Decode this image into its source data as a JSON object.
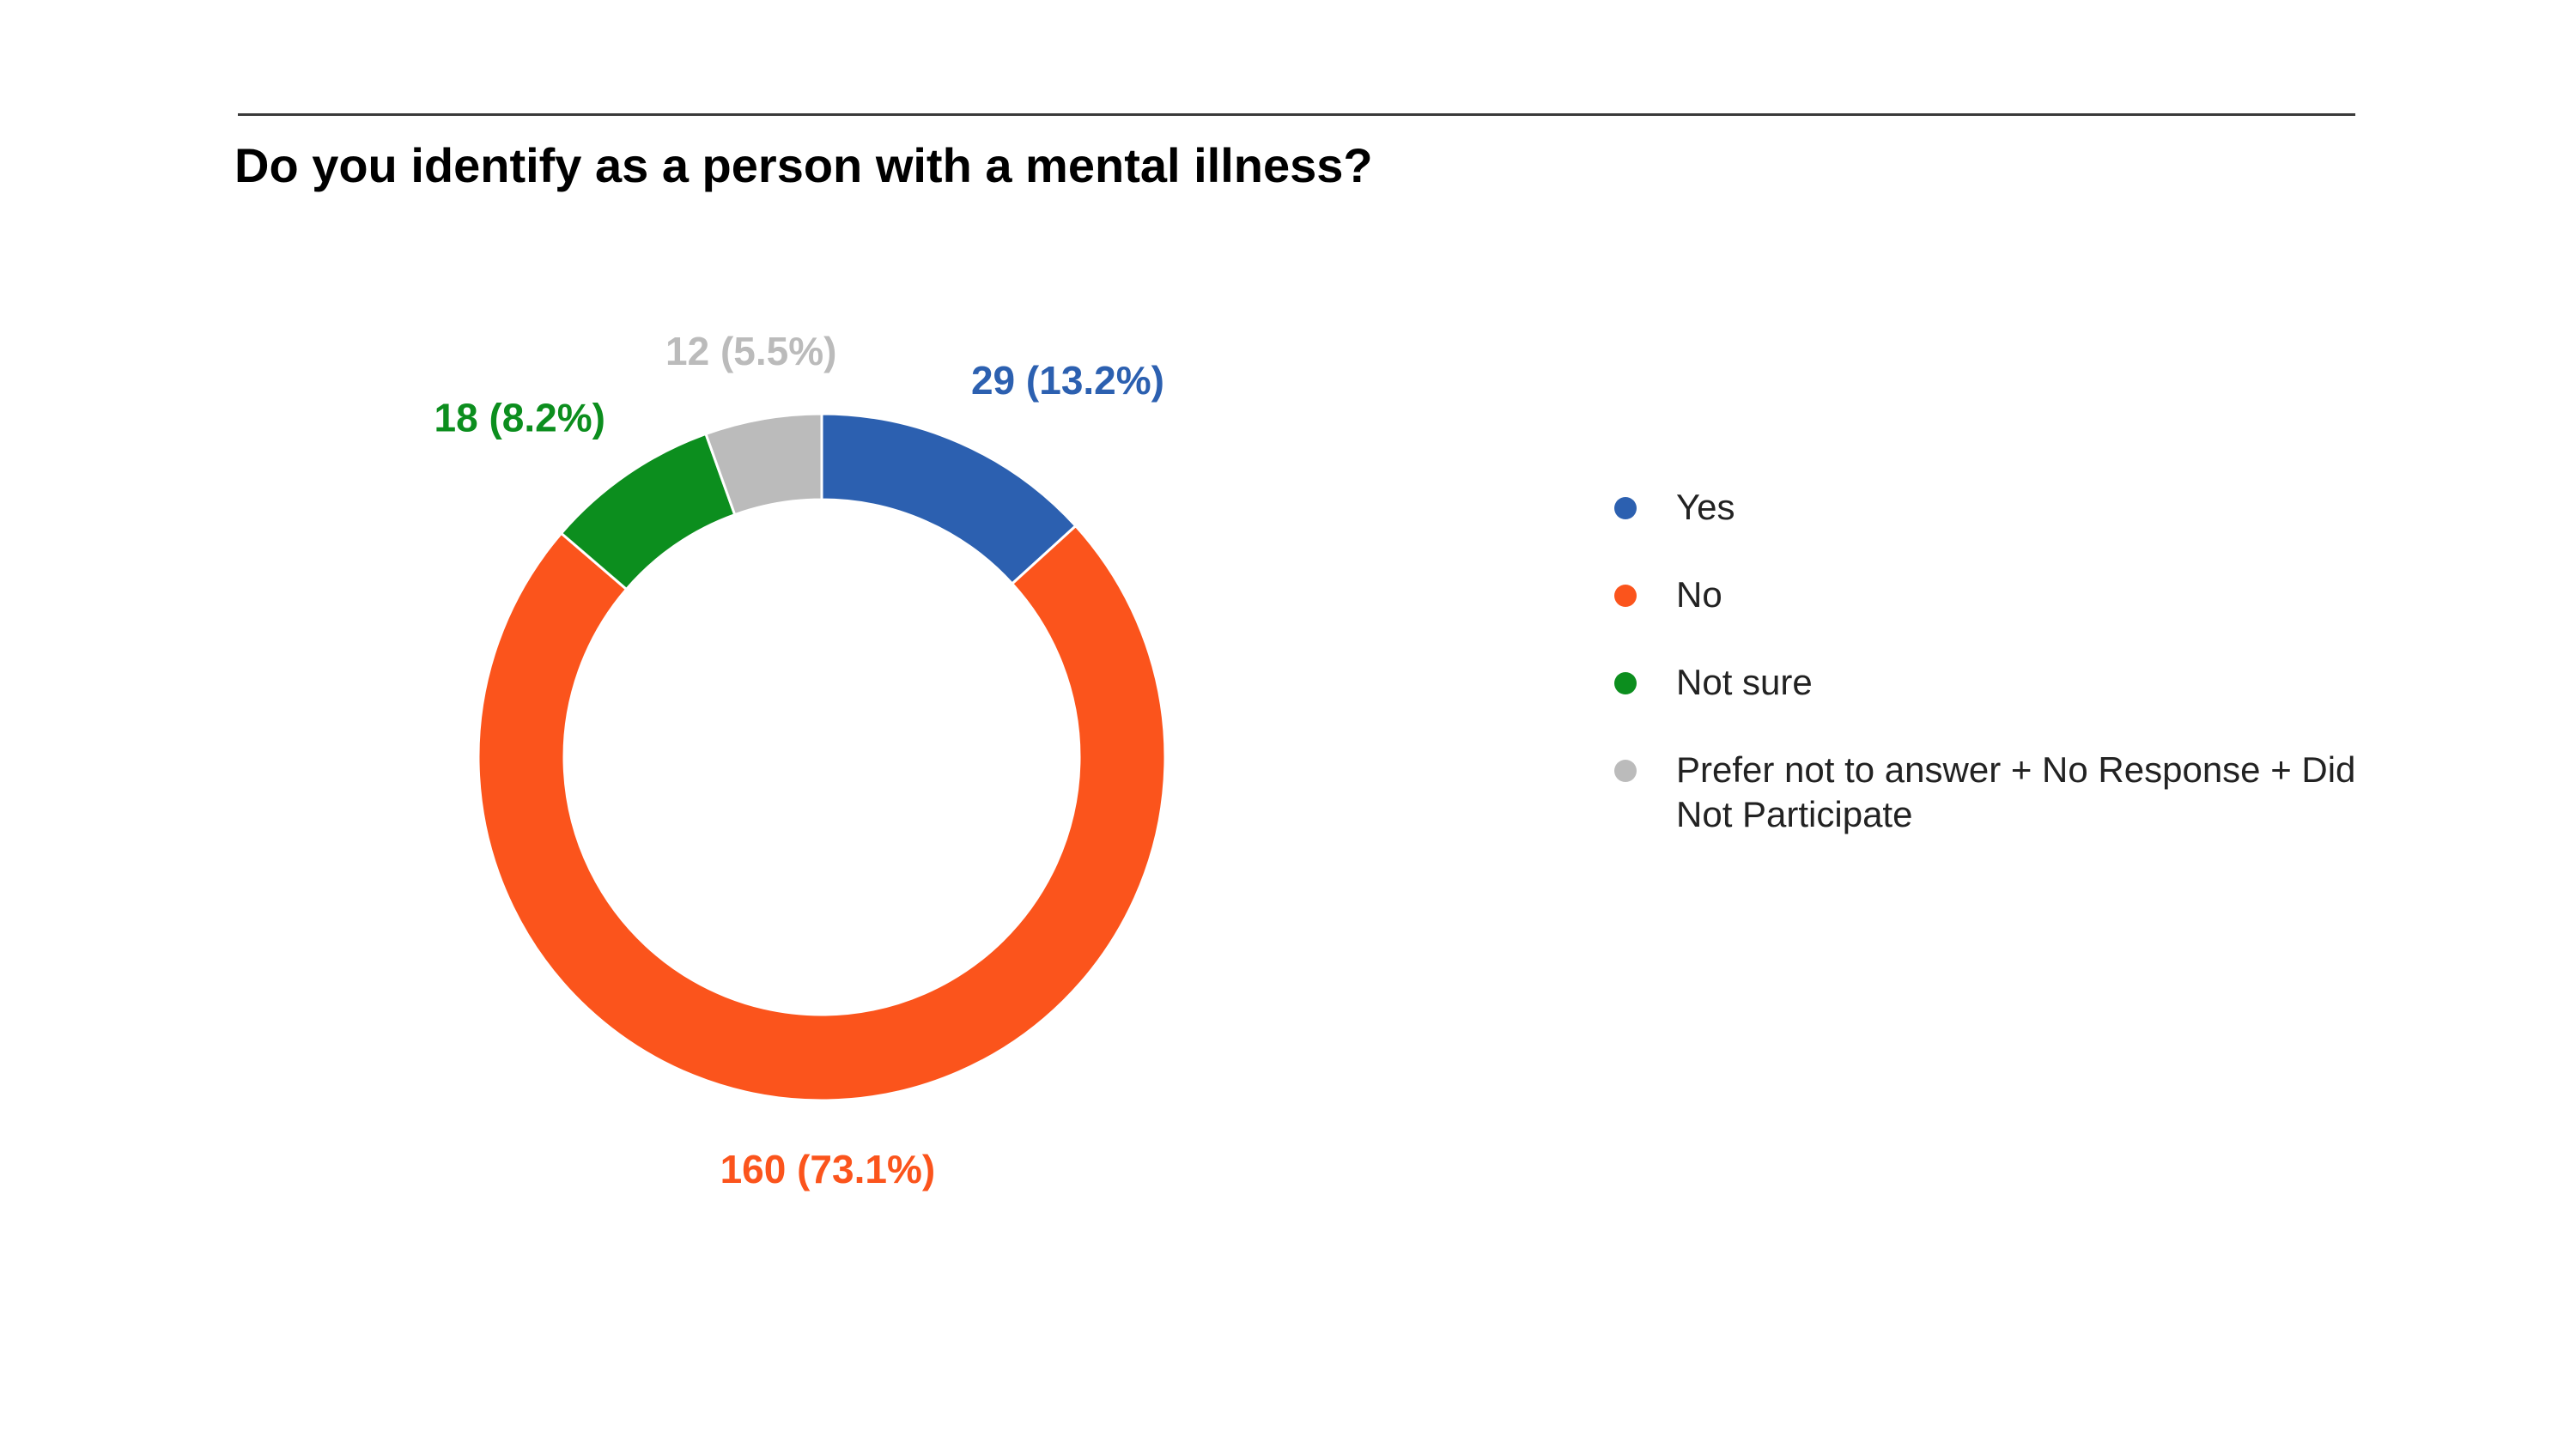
{
  "title": "Do you identify as a person with a mental illness?",
  "chart_data": {
    "type": "pie",
    "variant": "donut",
    "title": "Do you identify as a person with a mental illness?",
    "legend_position": "right",
    "slices": [
      {
        "label": "Yes",
        "value": 29,
        "percent": 13.2,
        "display": "29 (13.2%)",
        "color": "#2c60b0"
      },
      {
        "label": "No",
        "value": 160,
        "percent": 73.1,
        "display": "160 (73.1%)",
        "color": "#fb541c"
      },
      {
        "label": "Not sure",
        "value": 18,
        "percent": 8.2,
        "display": "18 (8.2%)",
        "color": "#0c8e1e"
      },
      {
        "label": "Prefer not to answer + No Response + Did Not Participate",
        "value": 12,
        "percent": 5.5,
        "display": "12 (5.5%)",
        "color": "#bbbbbb"
      }
    ]
  }
}
